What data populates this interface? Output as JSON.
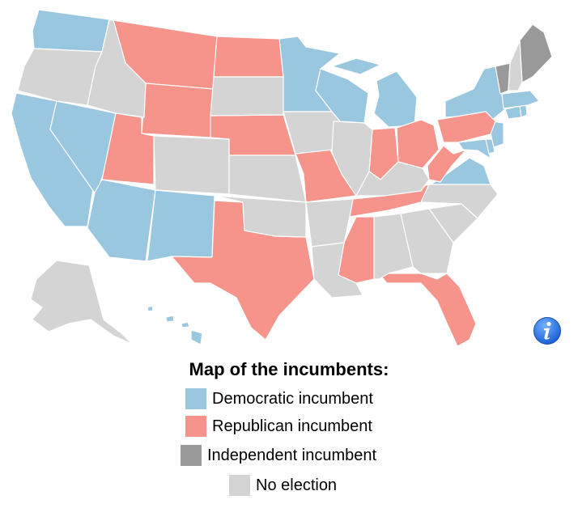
{
  "legend": {
    "title": "Map of the incumbents:",
    "items": [
      {
        "label": "Democratic incumbent",
        "color": "#9ac7e0"
      },
      {
        "label": "Republican incumbent",
        "color": "#f6938a"
      },
      {
        "label": "Independent incumbent",
        "color": "#999999"
      },
      {
        "label": "No election",
        "color": "#d4d4d4"
      }
    ]
  },
  "info_icon": "info-icon",
  "states": {
    "democratic": [
      "WA",
      "CA",
      "NV",
      "AZ",
      "NM",
      "MN",
      "WI",
      "MI",
      "VA",
      "MD",
      "DE",
      "NJ",
      "NY",
      "CT",
      "RI",
      "MA",
      "HI"
    ],
    "republican": [
      "MT",
      "ND",
      "WY",
      "NE",
      "UT",
      "TX",
      "MO",
      "MS",
      "TN",
      "IN",
      "OH",
      "WV",
      "PA",
      "FL"
    ],
    "independent": [
      "VT",
      "ME"
    ],
    "no_election": [
      "OR",
      "ID",
      "SD",
      "IA",
      "IL",
      "KS",
      "OK",
      "AR",
      "LA",
      "AL",
      "GA",
      "SC",
      "NC",
      "KY",
      "CO",
      "NH",
      "AK"
    ]
  }
}
